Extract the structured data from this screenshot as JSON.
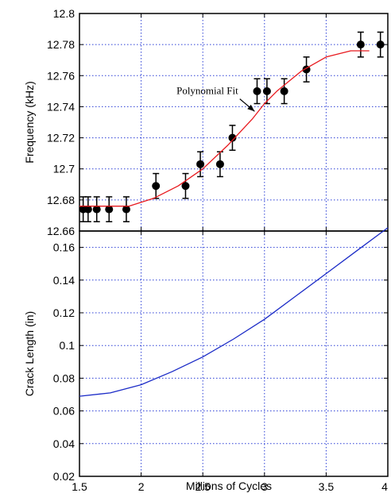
{
  "chart_data": [
    {
      "type": "scatter",
      "ylabel": "Frequency (kHz)",
      "xlabel": "",
      "xlim": [
        1.5,
        4
      ],
      "ylim": [
        12.66,
        12.8
      ],
      "grid": true,
      "x_ticks": [
        "1.5",
        "2",
        "2.5",
        "3",
        "3.5",
        "4"
      ],
      "y_ticks": [
        "12.66",
        "12.68",
        "12.7",
        "12.72",
        "12.74",
        "12.76",
        "12.78",
        "12.8"
      ],
      "series": [
        {
          "kind": "scatter_errorbar",
          "color": "#000000",
          "x": [
            1.53,
            1.57,
            1.64,
            1.74,
            1.88,
            2.12,
            2.36,
            2.48,
            2.64,
            2.74,
            2.94,
            3.02,
            3.16,
            3.34,
            3.78,
            3.94
          ],
          "y": [
            12.674,
            12.674,
            12.674,
            12.674,
            12.674,
            12.689,
            12.689,
            12.703,
            12.703,
            12.72,
            12.75,
            12.75,
            12.75,
            12.764,
            12.78,
            12.78
          ],
          "err": [
            0.008,
            0.008,
            0.008,
            0.008,
            0.008,
            0.008,
            0.008,
            0.008,
            0.008,
            0.008,
            0.008,
            0.008,
            0.008,
            0.008,
            0.008,
            0.008
          ]
        },
        {
          "kind": "line",
          "color": "#e8191e",
          "x": [
            1.5,
            1.7,
            1.9,
            2.1,
            2.3,
            2.5,
            2.7,
            2.9,
            3.0,
            3.1,
            3.3,
            3.5,
            3.7,
            3.85
          ],
          "y": [
            12.676,
            12.676,
            12.676,
            12.681,
            12.689,
            12.7,
            12.715,
            12.732,
            12.742,
            12.75,
            12.763,
            12.772,
            12.776,
            12.776
          ]
        }
      ],
      "annotation": {
        "text": "Polynomial Fit",
        "arrow_from": [
          2.8,
          12.745
        ],
        "arrow_to": [
          2.92,
          12.737
        ]
      }
    },
    {
      "type": "line",
      "ylabel": "Crack Length (in)",
      "xlabel": "Millions of Cycles",
      "xlim": [
        1.5,
        4
      ],
      "ylim": [
        0.02,
        0.17
      ],
      "grid": true,
      "x_ticks": [
        "1.5",
        "2",
        "2.5",
        "3",
        "3.5",
        "4"
      ],
      "y_ticks": [
        "0.02",
        "0.04",
        "0.06",
        "0.08",
        "0.1",
        "0.12",
        "0.14",
        "0.16"
      ],
      "series": [
        {
          "kind": "line",
          "color": "#1b2bc7",
          "x": [
            1.5,
            1.75,
            2.0,
            2.25,
            2.5,
            2.75,
            3.0,
            3.25,
            3.5,
            3.75,
            4.0
          ],
          "y": [
            0.069,
            0.071,
            0.076,
            0.084,
            0.093,
            0.104,
            0.116,
            0.13,
            0.144,
            0.158,
            0.172
          ]
        }
      ]
    }
  ]
}
